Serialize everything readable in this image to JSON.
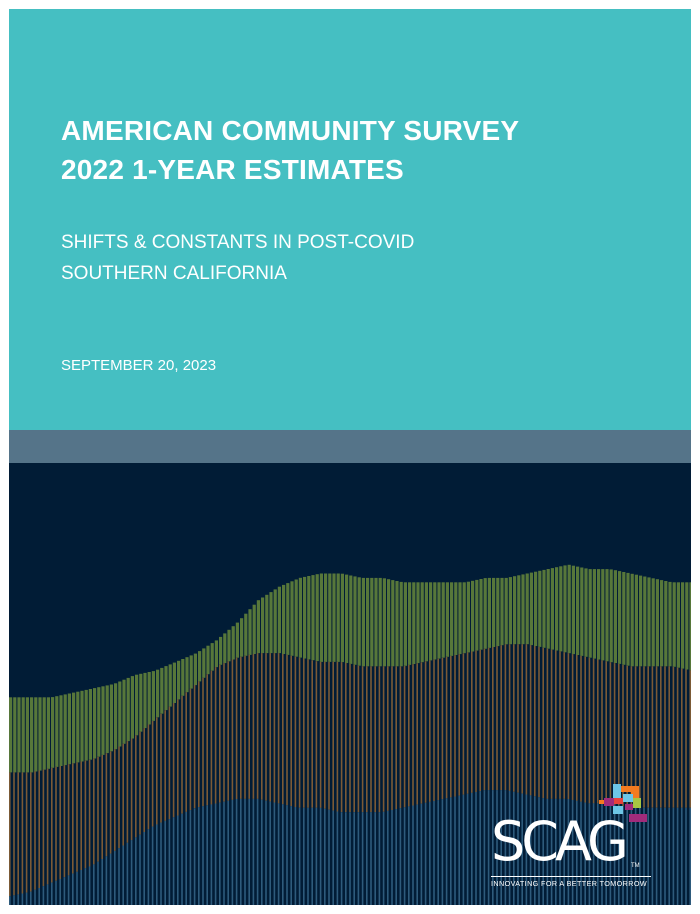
{
  "cover": {
    "title_line1": "AMERICAN COMMUNITY SURVEY",
    "title_line2": "2022 1-YEAR ESTIMATES",
    "subtitle_line1": "SHIFTS & CONSTANTS IN POST-COVID",
    "subtitle_line2": "SOUTHERN CALIFORNIA",
    "date": "SEPTEMBER 20, 2023"
  },
  "logo": {
    "wordmark": "SCAG",
    "trademark": "TM",
    "tagline": "INNOVATING FOR A BETTER TOMORROW"
  },
  "colors": {
    "top_panel": "#45bfc2",
    "divider_band": "#557489",
    "bottom_panel": "#011c36",
    "bar_green": "#57773a",
    "bar_brown": "#7b5a36",
    "bar_blue": "#2e5b7c",
    "logo_orange": "#f47b20",
    "logo_magenta": "#a12b7b",
    "logo_lightblue": "#6dc6e6",
    "logo_yellowgreen": "#a7c542"
  },
  "decorative_graphic": {
    "description_free": true,
    "green_top_profile": [
      0.47,
      0.47,
      0.47,
      0.48,
      0.49,
      0.5,
      0.52,
      0.53,
      0.55,
      0.57,
      0.6,
      0.64,
      0.69,
      0.72,
      0.74,
      0.75,
      0.75,
      0.74,
      0.74,
      0.73,
      0.73,
      0.73,
      0.73,
      0.74,
      0.74,
      0.75,
      0.76,
      0.77,
      0.76,
      0.76,
      0.75,
      0.74,
      0.73,
      0.73
    ],
    "brown_top_profile": [
      0.3,
      0.3,
      0.31,
      0.32,
      0.33,
      0.35,
      0.38,
      0.42,
      0.46,
      0.5,
      0.54,
      0.56,
      0.57,
      0.57,
      0.56,
      0.55,
      0.55,
      0.54,
      0.54,
      0.54,
      0.55,
      0.56,
      0.57,
      0.58,
      0.59,
      0.59,
      0.58,
      0.57,
      0.56,
      0.55,
      0.54,
      0.54,
      0.54,
      0.53
    ],
    "blue_top_profile": [
      0.02,
      0.03,
      0.05,
      0.07,
      0.09,
      0.12,
      0.15,
      0.18,
      0.2,
      0.22,
      0.23,
      0.24,
      0.24,
      0.23,
      0.22,
      0.22,
      0.21,
      0.21,
      0.21,
      0.22,
      0.23,
      0.24,
      0.25,
      0.26,
      0.26,
      0.25,
      0.24,
      0.24,
      0.23,
      0.23,
      0.22,
      0.22,
      0.22,
      0.22
    ]
  }
}
